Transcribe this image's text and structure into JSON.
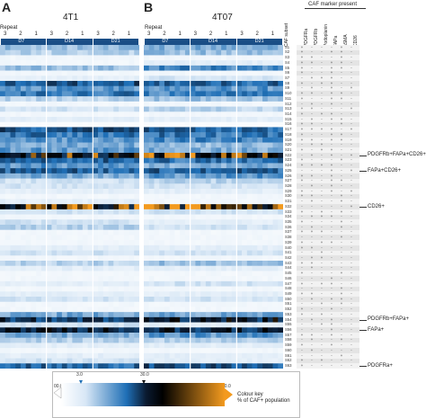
{
  "panels": [
    {
      "letter": "A",
      "title": "4T1"
    },
    {
      "letter": "B",
      "title": "4T07"
    }
  ],
  "repeat_label": "Repeat",
  "repeat_numbers": [
    "3",
    "2",
    "1",
    "3",
    "2",
    "1",
    "3",
    "2",
    "1"
  ],
  "days": [
    "D7",
    "D14",
    "D21"
  ],
  "table": {
    "header": "CAF marker present",
    "subset_col": "CAF subset",
    "marker_cols": [
      "PDGFRa",
      "PDGFRb",
      "Podoplanin",
      "FAPa",
      "aSMA",
      "CD26"
    ]
  },
  "annotations": [
    {
      "text": "PDGFRb+FAPa+CD26+",
      "subset": "S22"
    },
    {
      "text": "FAPa+CD26+",
      "subset": "S25"
    },
    {
      "text": "CD26+",
      "subset": "S32"
    },
    {
      "text": "PDGFRb+FAPa+",
      "subset": "S54"
    },
    {
      "text": "FAPa+",
      "subset": "S56"
    },
    {
      "text": "PDGFRa+",
      "subset": "S63"
    }
  ],
  "colour_key": {
    "title_line1": "Colour key",
    "title_line2": "% of CAF+ population",
    "ticks": [
      "00.0",
      "3.0",
      "30.0",
      "60.0"
    ],
    "colors": {
      "low": "#ffffff",
      "mid_blue": "#1f6fb6",
      "black": "#000000",
      "orange": "#f39a1e"
    }
  },
  "chart_data": {
    "type": "heatmap",
    "panels": [
      "4T1",
      "4T07"
    ],
    "columns_per_day": 9,
    "days": [
      "D7",
      "D14",
      "D21"
    ],
    "repeats": [
      "3",
      "2",
      "1"
    ],
    "rows": [
      "S1",
      "S2",
      "S3",
      "S4",
      "S5",
      "S6",
      "S7",
      "S8",
      "S9",
      "S10",
      "S11",
      "S12",
      "S13",
      "S14",
      "S15",
      "S16",
      "S17",
      "S18",
      "S19",
      "S20",
      "S21",
      "S22",
      "S23",
      "S24",
      "S25",
      "S26",
      "S27",
      "S28",
      "S29",
      "S30",
      "S31",
      "S32",
      "S33",
      "S34",
      "S35",
      "S36",
      "S37",
      "S38",
      "S39",
      "S40",
      "S41",
      "S42",
      "S43",
      "S44",
      "S45",
      "S46",
      "S47",
      "S48",
      "S49",
      "S50",
      "S51",
      "S52",
      "S53",
      "S54",
      "S55",
      "S56",
      "S57",
      "S58",
      "S59",
      "S60",
      "S61",
      "S62",
      "S63"
    ],
    "row_intensity_4T1": [
      0.25,
      0.2,
      0.05,
      0.05,
      0.25,
      0.05,
      0.1,
      0.55,
      0.35,
      0.45,
      0.2,
      0.05,
      0.15,
      0.05,
      0.1,
      0.02,
      0.55,
      0.45,
      0.35,
      0.3,
      0.35,
      0.8,
      0.5,
      0.35,
      0.5,
      0.3,
      0.15,
      0.15,
      0.1,
      0.05,
      0.1,
      0.85,
      0.15,
      0.05,
      0.15,
      0.2,
      0.05,
      0.05,
      0.05,
      0.1,
      0.15,
      0.05,
      0.2,
      0.1,
      0.05,
      0.05,
      0.1,
      0.05,
      0.1,
      0.15,
      0.05,
      0.05,
      0.3,
      0.65,
      0.15,
      0.75,
      0.3,
      0.2,
      0.1,
      0.05,
      0.1,
      0.15,
      0.5
    ],
    "row_intensity_4T07": [
      0.3,
      0.25,
      0.05,
      0.1,
      0.4,
      0.05,
      0.15,
      0.5,
      0.35,
      0.4,
      0.25,
      0.05,
      0.2,
      0.05,
      0.1,
      0.02,
      0.5,
      0.45,
      0.4,
      0.25,
      0.3,
      0.85,
      0.45,
      0.3,
      0.5,
      0.35,
      0.2,
      0.15,
      0.1,
      0.05,
      0.05,
      0.9,
      0.15,
      0.05,
      0.1,
      0.15,
      0.05,
      0.05,
      0.05,
      0.1,
      0.15,
      0.05,
      0.25,
      0.1,
      0.05,
      0.05,
      0.15,
      0.05,
      0.1,
      0.15,
      0.05,
      0.05,
      0.3,
      0.7,
      0.1,
      0.7,
      0.35,
      0.2,
      0.1,
      0.05,
      0.1,
      0.1,
      0.55
    ],
    "marker_table": [
      [
        "+",
        "-",
        "-",
        "-",
        "+",
        "-"
      ],
      [
        "+",
        "-",
        "-",
        "+",
        "+",
        "-"
      ],
      [
        "+",
        "+",
        "-",
        "-",
        "+",
        "-"
      ],
      [
        "+",
        "+",
        "-",
        "+",
        "+",
        "-"
      ],
      [
        "+",
        "-",
        "-",
        "+",
        "+",
        "-"
      ],
      [
        "+",
        "-",
        "-",
        "+",
        "-",
        "-"
      ],
      [
        "-",
        "+",
        "+",
        "+",
        "-",
        "-"
      ],
      [
        "+",
        "-",
        "+",
        "+",
        "-",
        "-"
      ],
      [
        "-",
        "+",
        "-",
        "+",
        "-",
        "+"
      ],
      [
        "+",
        "+",
        "-",
        "+",
        "+",
        "-"
      ],
      [
        "+",
        "-",
        "-",
        "+",
        "+",
        "-"
      ],
      [
        "-",
        "+",
        "-",
        "+",
        "-",
        "-"
      ],
      [
        "+",
        "+",
        "-",
        "-",
        "-",
        "+"
      ],
      [
        "+",
        "-",
        "+",
        "+",
        "-",
        "-"
      ],
      [
        "-",
        "+",
        "-",
        "+",
        "+",
        "-"
      ],
      [
        "+",
        "+",
        "-",
        "-",
        "+",
        "-"
      ],
      [
        "+",
        "+",
        "+",
        "+",
        "-",
        "+"
      ],
      [
        "+",
        "-",
        "-",
        "+",
        "+",
        "-"
      ],
      [
        "+",
        "+",
        "-",
        "+",
        "+",
        "-"
      ],
      [
        "-",
        "+",
        "+",
        "-",
        "-",
        "-"
      ],
      [
        "+",
        "-",
        "+",
        "+",
        "-",
        "-"
      ],
      [
        "-",
        "+",
        "-",
        "+",
        "-",
        "+"
      ],
      [
        "+",
        "-",
        "-",
        "-",
        "+",
        "-"
      ],
      [
        "+",
        "+",
        "+",
        "+",
        "-",
        "-"
      ],
      [
        "-",
        "-",
        "-",
        "+",
        "-",
        "+"
      ],
      [
        "+",
        "+",
        "-",
        "+",
        "-",
        "-"
      ],
      [
        "+",
        "-",
        "-",
        "+",
        "+",
        "-"
      ],
      [
        "-",
        "+",
        "-",
        "+",
        "-",
        "-"
      ],
      [
        "+",
        "-",
        "-",
        "+",
        "-",
        "+"
      ],
      [
        "+",
        "+",
        "-",
        "-",
        "+",
        "-"
      ],
      [
        "-",
        "+",
        "-",
        "-",
        "+",
        "-"
      ],
      [
        "-",
        "-",
        "-",
        "-",
        "-",
        "+"
      ],
      [
        "+",
        "-",
        "+",
        "-",
        "+",
        "-"
      ],
      [
        "-",
        "+",
        "+",
        "+",
        "-",
        "-"
      ],
      [
        "+",
        "-",
        "-",
        "-",
        "+",
        "-"
      ],
      [
        "-",
        "+",
        "-",
        "-",
        "+",
        "-"
      ],
      [
        "+",
        "+",
        "+",
        "-",
        "-",
        "-"
      ],
      [
        "-",
        "-",
        "-",
        "-",
        "+",
        "-"
      ],
      [
        "+",
        "-",
        "+",
        "+",
        "-",
        "-"
      ],
      [
        "+",
        "+",
        "-",
        "-",
        "-",
        "-"
      ],
      [
        "-",
        "-",
        "+",
        "-",
        "-",
        "-"
      ],
      [
        "-",
        "+",
        "+",
        "-",
        "-",
        "-"
      ],
      [
        "+",
        "+",
        "-",
        "-",
        "-",
        "-"
      ],
      [
        "-",
        "+",
        "-",
        "-",
        "-",
        "-"
      ],
      [
        "+",
        "-",
        "-",
        "-",
        "+",
        "-"
      ],
      [
        "-",
        "-",
        "-",
        "+",
        "-",
        "-"
      ],
      [
        "+",
        "-",
        "+",
        "+",
        "-",
        "-"
      ],
      [
        "-",
        "-",
        "-",
        "-",
        "+",
        "-"
      ],
      [
        "+",
        "+",
        "-",
        "-",
        "+",
        "-"
      ],
      [
        "-",
        "+",
        "-",
        "+",
        "+",
        "-"
      ],
      [
        "-",
        "-",
        "+",
        "-",
        "+",
        "-"
      ],
      [
        "+",
        "-",
        "-",
        "+",
        "-",
        "-"
      ],
      [
        "+",
        "-",
        "+",
        "-",
        "-",
        "-"
      ],
      [
        "-",
        "+",
        "-",
        "+",
        "-",
        "-"
      ],
      [
        "-",
        "-",
        "+",
        "+",
        "-",
        "-"
      ],
      [
        "-",
        "-",
        "-",
        "+",
        "-",
        "-"
      ],
      [
        "+",
        "+",
        "-",
        "+",
        "-",
        "-"
      ],
      [
        "-",
        "+",
        "-",
        "-",
        "+",
        "-"
      ],
      [
        "+",
        "-",
        "-",
        "+",
        "-",
        "-"
      ],
      [
        "-",
        "+",
        "-",
        "-",
        "-",
        "-"
      ],
      [
        "-",
        "-",
        "-",
        "-",
        "+",
        "-"
      ],
      [
        "+",
        "-",
        "+",
        "-",
        "-",
        "-"
      ],
      [
        "+",
        "-",
        "-",
        "-",
        "-",
        "-"
      ]
    ]
  }
}
